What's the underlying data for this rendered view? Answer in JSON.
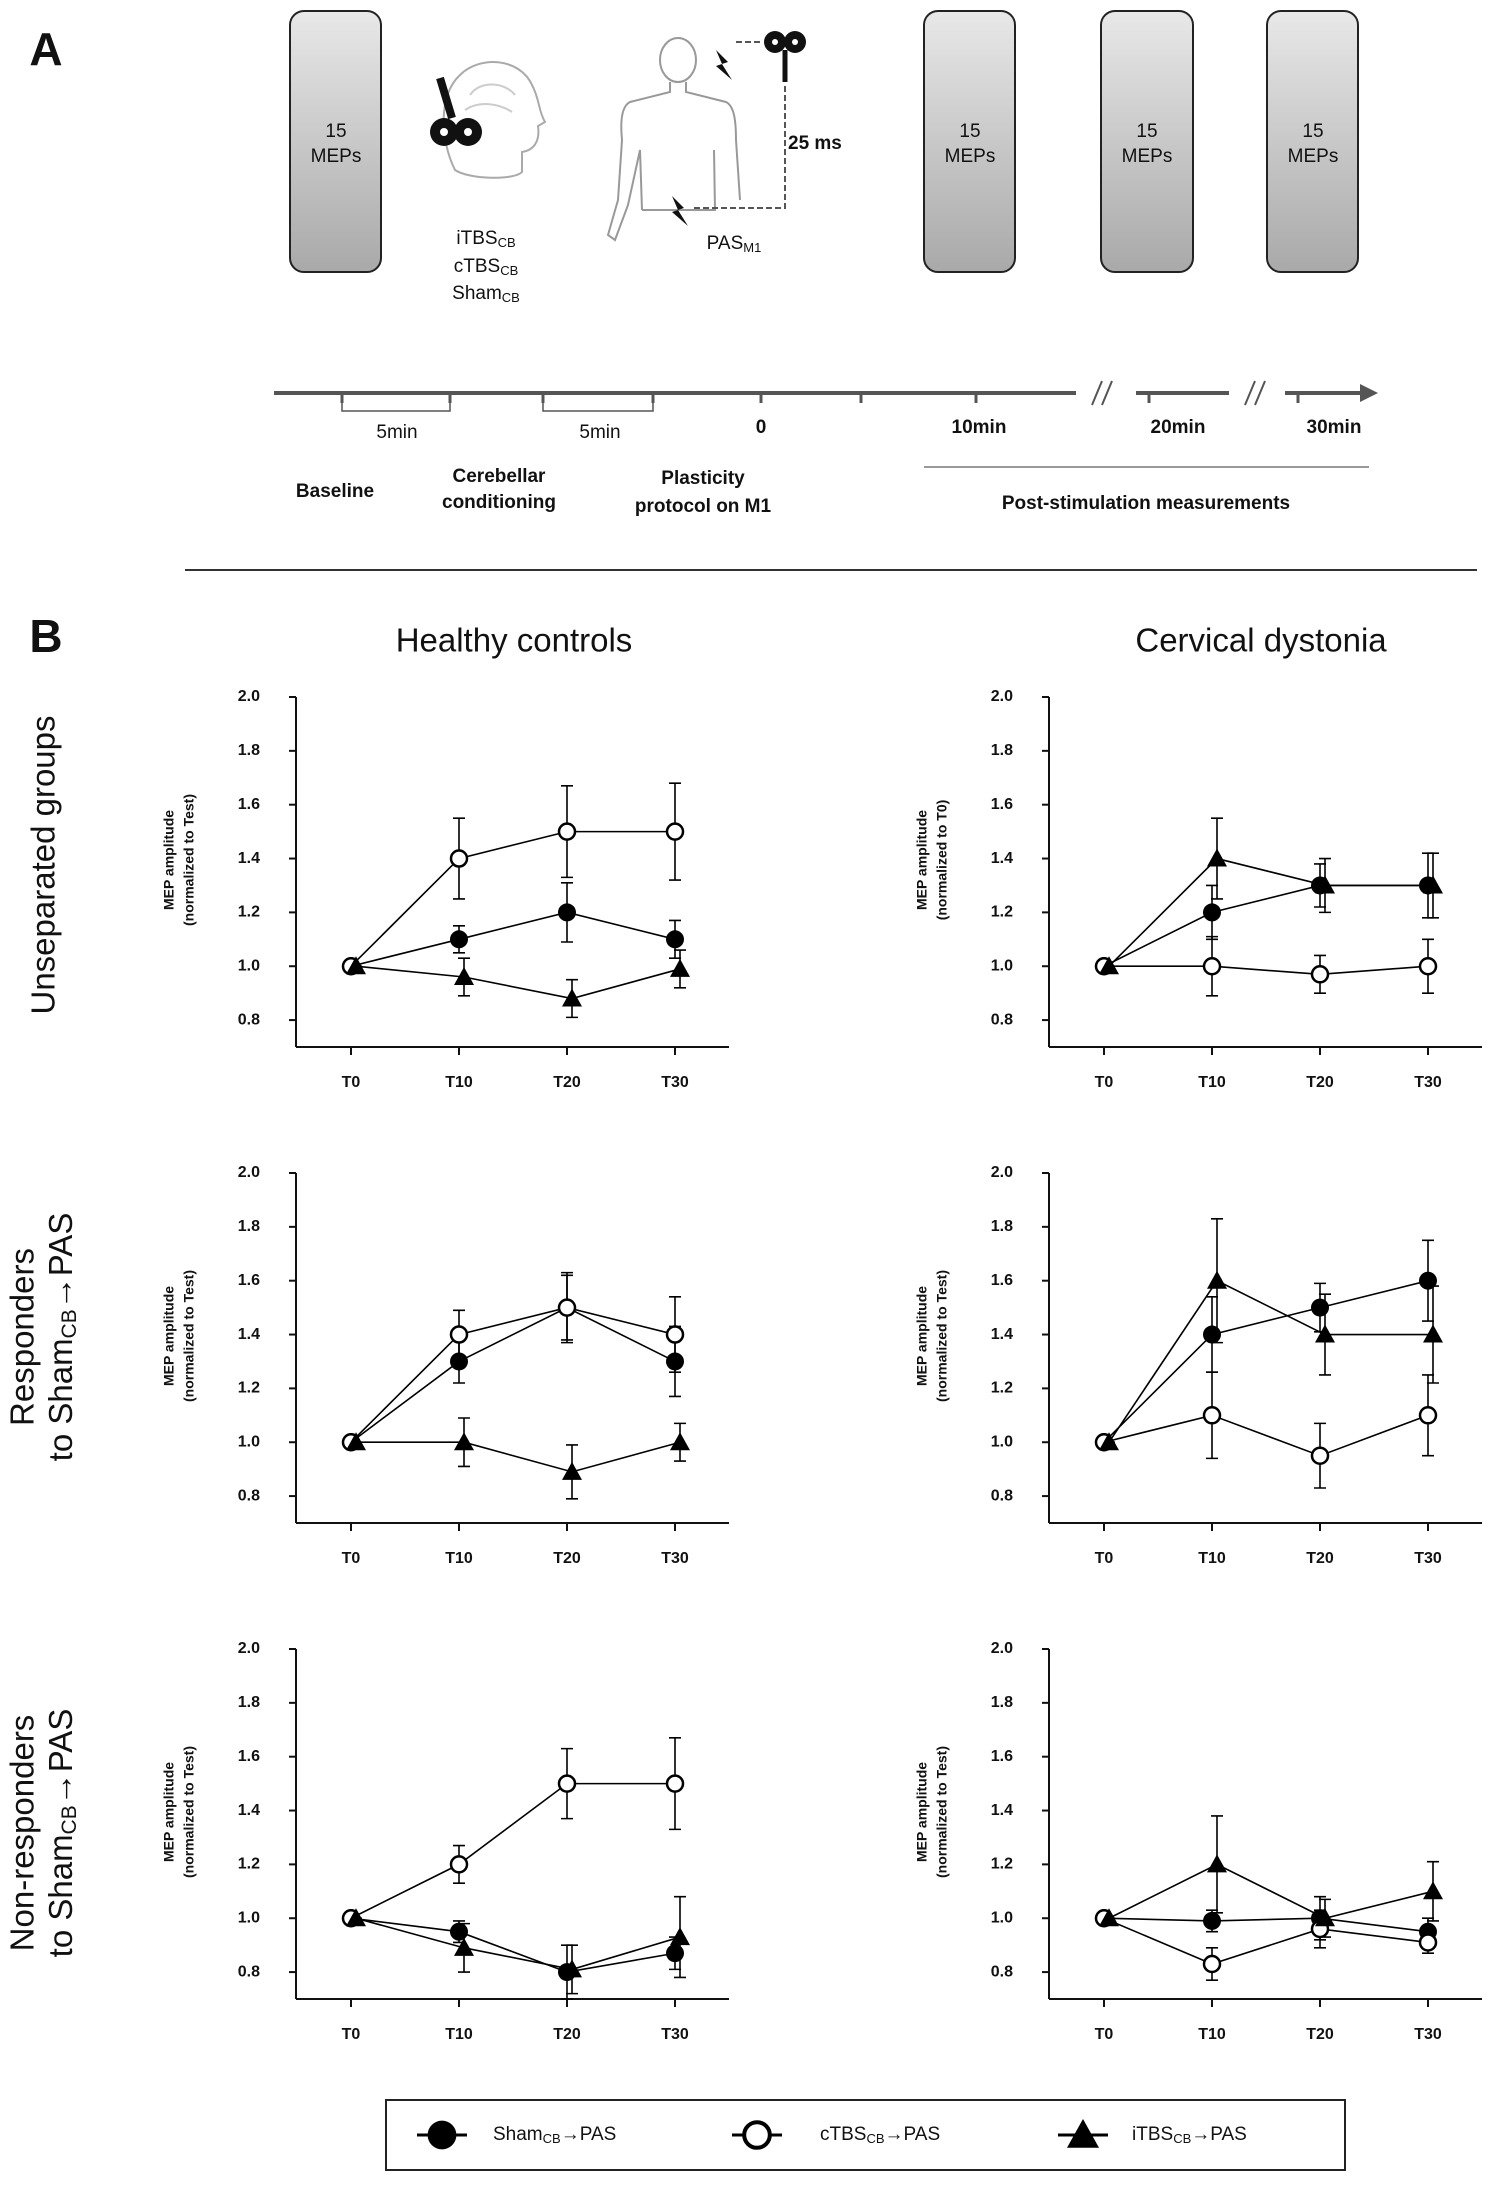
{
  "panel_a": {
    "label": "A",
    "boxes": [
      {
        "line1": "15",
        "line2": "MEPs"
      },
      {
        "line1": "15",
        "line2": "MEPs"
      },
      {
        "line1": "15",
        "line2": "MEPs"
      },
      {
        "line1": "15",
        "line2": "MEPs"
      }
    ],
    "conditioning": [
      {
        "text": "iTBS",
        "sub": "CB"
      },
      {
        "text": "cTBS",
        "sub": "CB"
      },
      {
        "text": "Sham",
        "sub": "CB"
      }
    ],
    "interval": "25 ms",
    "pas": {
      "text": "PAS",
      "sub": "M1"
    },
    "timeline": {
      "intervals": [
        "5min",
        "5min"
      ],
      "times": [
        "0",
        "10min",
        "20min",
        "30min"
      ],
      "phases": [
        [
          "Baseline"
        ],
        [
          "Cerebellar",
          "conditioning"
        ],
        [
          "Plasticity",
          "protocol on M1"
        ]
      ],
      "post": "Post-stimulation measurements"
    }
  },
  "panel_b": {
    "label": "B",
    "columns": [
      "Healthy controls",
      "Cervical dystonia"
    ],
    "rows": [
      {
        "line1": "Unseparated groups"
      },
      {
        "line1": "Responders",
        "line2": "to Sham",
        "sub": "CB",
        "rest": "→PAS"
      },
      {
        "line1": "Non-responders",
        "line2": "to Sham",
        "sub": "CB",
        "rest": "→PAS"
      }
    ]
  },
  "legend": {
    "items": [
      {
        "text": "Sham",
        "sub": "CB",
        "rest": "→PAS"
      },
      {
        "text": "cTBS",
        "sub": "CB",
        "rest": "→PAS"
      },
      {
        "text": "iTBS",
        "sub": "CB",
        "rest": "→PAS"
      }
    ]
  },
  "chart_data": [
    {
      "type": "line",
      "ylabel": [
        "MEP amplitude",
        "(normalized to Test)"
      ],
      "categories": [
        "T0",
        "T10",
        "T20",
        "T30"
      ],
      "ylim": [
        0.7,
        2.0
      ],
      "yticks": [
        0.8,
        {
          "value": 1,
          "label": "1.0"
        },
        1.2,
        1.4,
        1.6,
        1.8,
        {
          "value": 2,
          "label": "2.0"
        }
      ],
      "series": [
        {
          "marker": "filled-circle",
          "color": "#000000",
          "values": [
            1.0,
            1.1,
            1.2,
            1.1
          ],
          "errors": [
            0,
            0.05,
            0.11,
            0.07
          ]
        },
        {
          "marker": "open-circle",
          "color": "#000000",
          "values": [
            1.0,
            1.4,
            1.5,
            1.5
          ],
          "errors": [
            0,
            0.15,
            0.17,
            0.18
          ]
        },
        {
          "marker": "triangle",
          "color": "#000000",
          "values": [
            1.0,
            0.96,
            0.88,
            0.99
          ],
          "errors": [
            0,
            0.07,
            0.07,
            0.07
          ]
        }
      ]
    },
    {
      "type": "line",
      "ylabel": [
        "MEP amplitude",
        "(normalized to T0)"
      ],
      "categories": [
        "T0",
        "T10",
        "T20",
        "T30"
      ],
      "ylim": [
        0.7,
        2.0
      ],
      "yticks": [
        0.8,
        {
          "value": 1,
          "label": "1.0"
        },
        1.2,
        1.4,
        1.6,
        1.8,
        {
          "value": 2,
          "label": "2.0"
        }
      ],
      "series": [
        {
          "marker": "filled-circle",
          "color": "#000000",
          "values": [
            1.0,
            1.2,
            1.3,
            1.3
          ],
          "errors": [
            0,
            0.1,
            0.08,
            0.12
          ]
        },
        {
          "marker": "open-circle",
          "color": "#000000",
          "values": [
            1.0,
            1.0,
            0.97,
            1.0
          ],
          "errors": [
            0,
            0.11,
            0.07,
            0.1
          ]
        },
        {
          "marker": "triangle",
          "color": "#000000",
          "values": [
            1.0,
            1.4,
            1.3,
            1.3
          ],
          "errors": [
            0,
            0.15,
            0.1,
            0.12
          ]
        }
      ]
    },
    {
      "type": "line",
      "ylabel": [
        "MEP amplitude",
        "(normalized to Test)"
      ],
      "categories": [
        "T0",
        "T10",
        "T20",
        "T30"
      ],
      "ylim": [
        0.7,
        2.0
      ],
      "yticks": [
        0.8,
        {
          "value": 1,
          "label": "1.0"
        },
        1.2,
        1.4,
        1.6,
        1.8,
        {
          "value": 2,
          "label": "2.0"
        }
      ],
      "series": [
        {
          "marker": "filled-circle",
          "color": "#000000",
          "values": [
            1.0,
            1.3,
            1.5,
            1.3
          ],
          "errors": [
            0,
            0.08,
            0.12,
            0.13
          ]
        },
        {
          "marker": "open-circle",
          "color": "#000000",
          "values": [
            1.0,
            1.4,
            1.5,
            1.4
          ],
          "errors": [
            0,
            0.09,
            0.13,
            0.14
          ]
        },
        {
          "marker": "triangle",
          "color": "#000000",
          "values": [
            1.0,
            1.0,
            0.89,
            1.0
          ],
          "errors": [
            0,
            0.09,
            0.1,
            0.07
          ]
        }
      ]
    },
    {
      "type": "line",
      "ylabel": [
        "MEP amplitude",
        "(normalized to Test)"
      ],
      "categories": [
        "T0",
        "T10",
        "T20",
        "T30"
      ],
      "ylim": [
        0.7,
        2.0
      ],
      "yticks": [
        0.8,
        {
          "value": 1,
          "label": "1.0"
        },
        1.2,
        1.4,
        1.6,
        1.8,
        {
          "value": 2,
          "label": "2.0"
        }
      ],
      "series": [
        {
          "marker": "filled-circle",
          "color": "#000000",
          "values": [
            1.0,
            1.4,
            1.5,
            1.6
          ],
          "errors": [
            0,
            0.14,
            0.09,
            0.15
          ]
        },
        {
          "marker": "open-circle",
          "color": "#000000",
          "values": [
            1.0,
            1.1,
            0.95,
            1.1
          ],
          "errors": [
            0,
            0.16,
            0.12,
            0.15
          ]
        },
        {
          "marker": "triangle",
          "color": "#000000",
          "values": [
            1.0,
            1.6,
            1.4,
            1.4
          ],
          "errors": [
            0,
            0.23,
            0.15,
            0.18
          ]
        }
      ]
    },
    {
      "type": "line",
      "ylabel": [
        "MEP amplitude",
        "(normalized to Test)"
      ],
      "categories": [
        "T0",
        "T10",
        "T20",
        "T30"
      ],
      "ylim": [
        0.7,
        2.0
      ],
      "yticks": [
        0.8,
        {
          "value": 1,
          "label": "1.0"
        },
        1.2,
        1.4,
        1.6,
        1.8,
        {
          "value": 2,
          "label": "2.0"
        }
      ],
      "series": [
        {
          "marker": "filled-circle",
          "color": "#000000",
          "values": [
            1.0,
            0.95,
            0.8,
            0.87
          ],
          "errors": [
            0,
            0.04,
            0.1,
            0.06
          ]
        },
        {
          "marker": "open-circle",
          "color": "#000000",
          "values": [
            1.0,
            1.2,
            1.5,
            1.5
          ],
          "errors": [
            0,
            0.07,
            0.13,
            0.17
          ]
        },
        {
          "marker": "triangle",
          "color": "#000000",
          "values": [
            1.0,
            0.89,
            0.81,
            0.93
          ],
          "errors": [
            0,
            0.09,
            0.09,
            0.15
          ]
        }
      ]
    },
    {
      "type": "line",
      "ylabel": [
        "MEP amplitude",
        "(normalized to Test)"
      ],
      "categories": [
        "T0",
        "T10",
        "T20",
        "T30"
      ],
      "ylim": [
        0.7,
        2.0
      ],
      "yticks": [
        0.8,
        {
          "value": 1,
          "label": "1.0"
        },
        1.2,
        1.4,
        1.6,
        1.8,
        {
          "value": 2,
          "label": "2.0"
        }
      ],
      "series": [
        {
          "marker": "filled-circle",
          "color": "#000000",
          "values": [
            1.0,
            0.99,
            1.0,
            0.95
          ],
          "errors": [
            0,
            0.04,
            0.08,
            0.05
          ]
        },
        {
          "marker": "open-circle",
          "color": "#000000",
          "values": [
            1.0,
            0.83,
            0.96,
            0.91
          ],
          "errors": [
            0,
            0.06,
            0.07,
            0.04
          ]
        },
        {
          "marker": "triangle",
          "color": "#000000",
          "values": [
            1.0,
            1.2,
            1.0,
            1.1
          ],
          "errors": [
            0,
            0.18,
            0.07,
            0.11
          ]
        }
      ]
    }
  ]
}
